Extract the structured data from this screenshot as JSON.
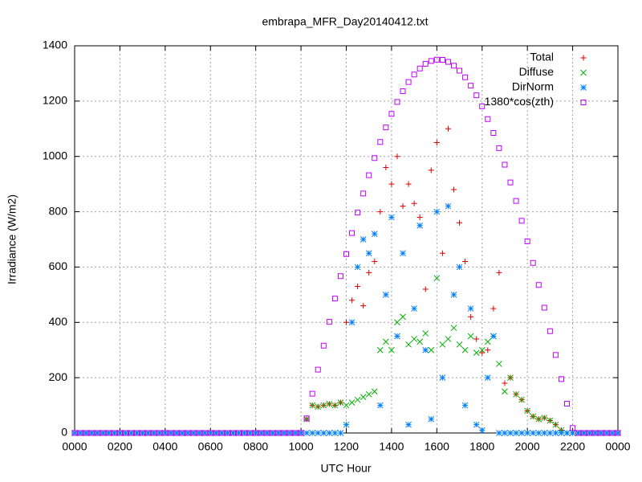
{
  "chart_data": {
    "type": "scatter",
    "title": "embrapa_MFR_Day20140412.txt",
    "xlabel": "UTC Hour",
    "ylabel": "Irradiance (W/m2)",
    "x": [
      0,
      0.25,
      0.5,
      0.75,
      1,
      1.25,
      1.5,
      1.75,
      2,
      2.25,
      2.5,
      2.75,
      3,
      3.25,
      3.5,
      3.75,
      4,
      4.25,
      4.5,
      4.75,
      5,
      5.25,
      5.5,
      5.75,
      6,
      6.25,
      6.5,
      6.75,
      7,
      7.25,
      7.5,
      7.75,
      8,
      8.25,
      8.5,
      8.75,
      9,
      9.25,
      9.5,
      9.75,
      10,
      10.25,
      10.5,
      10.75,
      11,
      11.25,
      11.5,
      11.75,
      12,
      12.25,
      12.5,
      12.75,
      13,
      13.25,
      13.5,
      13.75,
      14,
      14.25,
      14.5,
      14.75,
      15,
      15.25,
      15.5,
      15.75,
      16,
      16.25,
      16.5,
      16.75,
      17,
      17.25,
      17.5,
      17.75,
      18,
      18.25,
      18.5,
      18.75,
      19,
      19.25,
      19.5,
      19.75,
      20,
      20.25,
      20.5,
      20.75,
      21,
      21.25,
      21.5,
      21.75,
      22,
      22.25,
      22.5,
      22.75,
      23,
      23.25,
      23.5,
      23.75,
      24
    ],
    "series": [
      {
        "name": "Total",
        "color": "#e00000",
        "marker": "plus",
        "values": [
          0,
          0,
          0,
          0,
          0,
          0,
          0,
          0,
          0,
          0,
          0,
          0,
          0,
          0,
          0,
          0,
          0,
          0,
          0,
          0,
          0,
          0,
          0,
          0,
          0,
          0,
          0,
          0,
          0,
          0,
          0,
          0,
          0,
          0,
          0,
          0,
          0,
          0,
          0,
          0,
          0,
          50,
          100,
          95,
          100,
          105,
          100,
          110,
          400,
          480,
          530,
          460,
          580,
          620,
          800,
          960,
          900,
          1000,
          820,
          900,
          830,
          780,
          520,
          950,
          1050,
          650,
          1100,
          880,
          760,
          620,
          420,
          340,
          290,
          300,
          450,
          580,
          180,
          200,
          140,
          120,
          80,
          60,
          50,
          55,
          45,
          30,
          10,
          0,
          0,
          0,
          0,
          0,
          0,
          0,
          0,
          0,
          0
        ]
      },
      {
        "name": "Diffuse",
        "color": "#00b000",
        "marker": "cross",
        "values": [
          0,
          0,
          0,
          0,
          0,
          0,
          0,
          0,
          0,
          0,
          0,
          0,
          0,
          0,
          0,
          0,
          0,
          0,
          0,
          0,
          0,
          0,
          0,
          0,
          0,
          0,
          0,
          0,
          0,
          0,
          0,
          0,
          0,
          0,
          0,
          0,
          0,
          0,
          0,
          0,
          0,
          50,
          100,
          95,
          100,
          105,
          100,
          110,
          100,
          110,
          120,
          130,
          140,
          150,
          300,
          330,
          300,
          400,
          420,
          320,
          340,
          330,
          360,
          300,
          560,
          320,
          340,
          380,
          320,
          300,
          350,
          290,
          300,
          330,
          350,
          250,
          150,
          200,
          140,
          120,
          80,
          60,
          50,
          55,
          45,
          30,
          10,
          0,
          0,
          0,
          0,
          0,
          0,
          0,
          0,
          0,
          0
        ]
      },
      {
        "name": "DirNorm",
        "color": "#0080ff",
        "marker": "star",
        "values": [
          0,
          0,
          0,
          0,
          0,
          0,
          0,
          0,
          0,
          0,
          0,
          0,
          0,
          0,
          0,
          0,
          0,
          0,
          0,
          0,
          0,
          0,
          0,
          0,
          0,
          0,
          0,
          0,
          0,
          0,
          0,
          0,
          0,
          0,
          0,
          0,
          0,
          0,
          0,
          0,
          0,
          0,
          0,
          0,
          0,
          0,
          0,
          0,
          30,
          400,
          600,
          700,
          650,
          720,
          100,
          500,
          780,
          350,
          650,
          30,
          450,
          750,
          300,
          50,
          800,
          200,
          820,
          500,
          600,
          100,
          450,
          30,
          10,
          200,
          350,
          0,
          0,
          0,
          0,
          0,
          0,
          0,
          0,
          0,
          0,
          0,
          0,
          0,
          0,
          0,
          0,
          0,
          0,
          0,
          0,
          0,
          0
        ]
      },
      {
        "name": "1380*cos(zth)",
        "color": "#c000ff",
        "marker": "square",
        "values": [
          0,
          0,
          0,
          0,
          0,
          0,
          0,
          0,
          0,
          0,
          0,
          0,
          0,
          0,
          0,
          0,
          0,
          0,
          0,
          0,
          0,
          0,
          0,
          0,
          0,
          0,
          0,
          0,
          0,
          0,
          0,
          0,
          0,
          0,
          0,
          0,
          0,
          0,
          0,
          0,
          0,
          53,
          142,
          229,
          316,
          402,
          486,
          567,
          647,
          723,
          797,
          866,
          932,
          994,
          1052,
          1105,
          1154,
          1197,
          1236,
          1269,
          1296,
          1318,
          1335,
          1345,
          1350,
          1349,
          1342,
          1328,
          1310,
          1286,
          1256,
          1221,
          1181,
          1135,
          1085,
          1030,
          970,
          906,
          839,
          767,
          693,
          615,
          535,
          453,
          368,
          282,
          195,
          106,
          18,
          0,
          0,
          0,
          0,
          0,
          0,
          0,
          0
        ]
      }
    ],
    "xlim": [
      0,
      24
    ],
    "xticks": [
      {
        "value": 0,
        "label": "0000"
      },
      {
        "value": 2,
        "label": "0200"
      },
      {
        "value": 4,
        "label": "0400"
      },
      {
        "value": 6,
        "label": "0600"
      },
      {
        "value": 8,
        "label": "0800"
      },
      {
        "value": 10,
        "label": "1000"
      },
      {
        "value": 12,
        "label": "1200"
      },
      {
        "value": 14,
        "label": "1400"
      },
      {
        "value": 16,
        "label": "1600"
      },
      {
        "value": 18,
        "label": "1800"
      },
      {
        "value": 20,
        "label": "2000"
      },
      {
        "value": 22,
        "label": "2200"
      },
      {
        "value": 24,
        "label": "0000"
      }
    ],
    "ylim": [
      0,
      1400
    ],
    "yticks": [
      0,
      200,
      400,
      600,
      800,
      1000,
      1200,
      1400
    ],
    "grid": true,
    "legend": "upper right"
  }
}
